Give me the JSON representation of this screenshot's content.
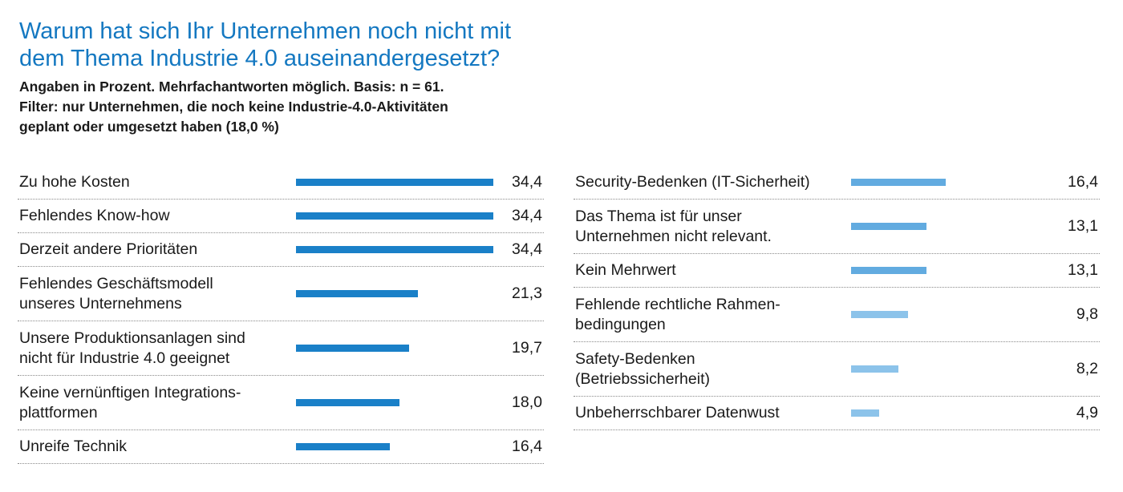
{
  "title_line1": "Warum hat sich Ihr Unternehmen noch nicht mit",
  "title_line2": "dem Thema Industrie 4.0 auseinandergesetzt?",
  "subtitle_line1": "Angaben in Prozent. Mehrfachantworten möglich. Basis: n = 61.",
  "subtitle_line2": "Filter: nur Unternehmen, die noch keine Industrie-4.0-Aktivitäten",
  "subtitle_line3": "geplant oder umgesetzt haben (18,0 %)",
  "colors": {
    "title": "#1478c1",
    "bar_dark": "#1a80c8",
    "bar_light": "#62abe0",
    "bar_lighter": "#8cc3ea"
  },
  "chart_data": {
    "type": "bar",
    "orientation": "horizontal",
    "unit": "Prozent",
    "xlim": [
      0,
      34.4
    ],
    "grid": false,
    "categories": [
      "Zu hohe Kosten",
      "Fehlendes Know-how",
      "Derzeit andere Prioritäten",
      "Fehlendes Geschäftsmodell\nunseres Unternehmens",
      "Unsere Produktionsanlagen sind\nnicht für Industrie 4.0 geeignet",
      "Keine vernünftigen Integrations-\nplattformen",
      "Unreife Technik",
      "Security-Bedenken (IT-Sicherheit)",
      "Das Thema ist für unser\nUnternehmen nicht relevant.",
      "Kein Mehrwert",
      "Fehlende rechtliche Rahmen-\nbedingungen",
      "Safety-Bedenken\n(Betriebssicherheit)",
      "Unbeherrschbarer Datenwust"
    ],
    "values": [
      34.4,
      34.4,
      34.4,
      21.3,
      19.7,
      18.0,
      16.4,
      16.4,
      13.1,
      13.1,
      9.8,
      8.2,
      4.9
    ],
    "value_labels": [
      "34,4",
      "34,4",
      "34,4",
      "21,3",
      "19,7",
      "18,0",
      "16,4",
      "16,4",
      "13,1",
      "13,1",
      "9,8",
      "8,2",
      "4,9"
    ]
  }
}
